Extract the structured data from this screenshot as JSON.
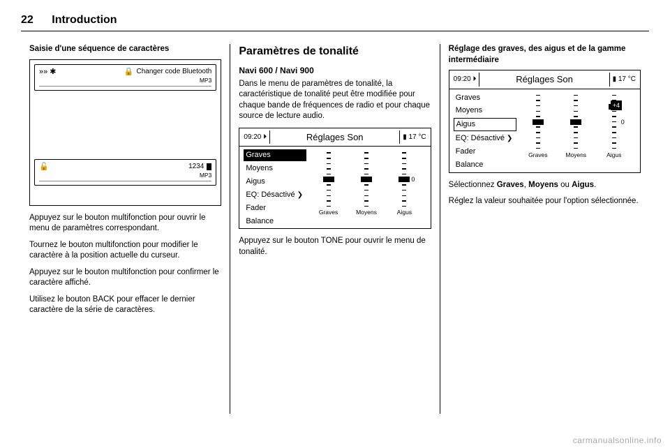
{
  "header": {
    "page_number": "22",
    "title": "Introduction"
  },
  "col1": {
    "heading": "Saisie d'une séquence de caractères",
    "screen1": {
      "icons": "»» ✱",
      "lock": "🔒",
      "label": "Changer code Bluetooth",
      "sub": "MP3"
    },
    "screen2": {
      "lock": "🔓",
      "value": "1234",
      "sub": "MP3"
    },
    "p1": "Appuyez sur le bouton multifonction pour ouvrir le menu de paramètres correspondant.",
    "p2": "Tournez le bouton multifonction pour modifier le caractère à la position actuelle du curseur.",
    "p3": "Appuyez sur le bouton multifonction pour confirmer le caractère affiché.",
    "p4": "Utilisez le bouton BACK pour effacer le dernier caractère de la série de caractères."
  },
  "col2": {
    "section": "Paramètres de tonalité",
    "sub_heading": "Navi 600 / Navi 900",
    "intro": "Dans le menu de paramètres de tonalité, la caractéristique de tonalité peut être modifiée pour chaque bande de fréquences de radio et pour chaque source de lecture audio.",
    "screen": {
      "time": "09:20",
      "title": "Réglages Son",
      "temp": "17 °C",
      "items": [
        "Graves",
        "Moyens",
        "Aigus",
        "EQ: Désactivé",
        "Fader",
        "Balance"
      ],
      "selected_index": 0,
      "slider_labels": [
        "Graves",
        "Moyens",
        "Aigus"
      ],
      "tick_count": 11,
      "marker_positions_pct": [
        50,
        50,
        50
      ],
      "zero_label": "0",
      "chevron": "❯"
    },
    "caption": "Appuyez sur le bouton TONE pour ouvrir le menu de tonalité."
  },
  "col3": {
    "heading": "Réglage des graves, des aigus et de la gamme intermédiaire",
    "screen": {
      "time": "09:20",
      "title": "Réglages Son",
      "temp": "17 °C",
      "items": [
        "Graves",
        "Moyens",
        "Aigus",
        "EQ: Désactivé",
        "Fader",
        "Balance"
      ],
      "highlight_index": 2,
      "slider_labels": [
        "Graves",
        "Moyens",
        "Aigus"
      ],
      "tick_count": 11,
      "marker_positions_pct": [
        50,
        50,
        22
      ],
      "badge": "+4",
      "zero_label": "0",
      "chevron": "❯"
    },
    "p1": "Sélectionnez Graves, Moyens ou Aigus.",
    "p2": "Réglez la valeur souhaitée pour l'option sélectionnée."
  },
  "watermark": "carmanualsonline.info",
  "colors": {
    "text": "#000000",
    "background": "#ffffff",
    "watermark": "rgba(0,0,0,0.35)"
  }
}
